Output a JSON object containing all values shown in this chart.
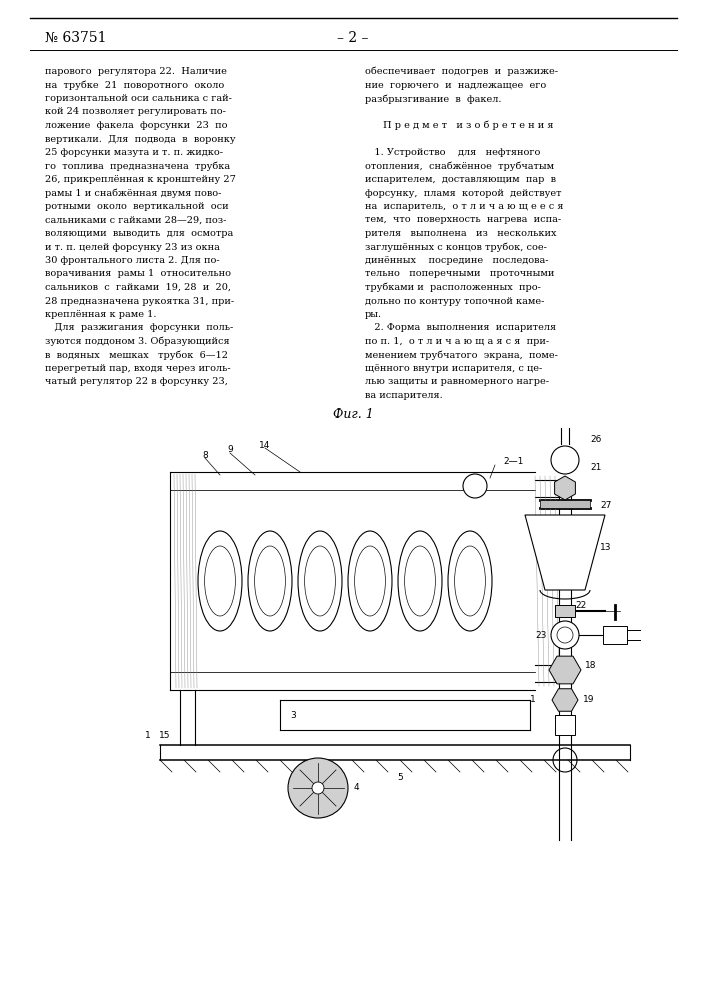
{
  "page_number": "№ 63751",
  "page_dash": "– 2 –",
  "background_color": "#ffffff",
  "text_color": "#000000",
  "figsize": [
    7.07,
    10.0
  ],
  "dpi": 100,
  "left_col_lines": [
    "парового  регулятора 22.  Наличие",
    "на  трубке  21  поворотного  около",
    "горизонтальной оси сальника с гай-",
    "кой 24 позволяет регулировать по-",
    "ложение  факела  форсунки  23  по",
    "вертикали.  Для  подвода  в  воронку",
    "25 форсунки мазута и т. п. жидко-",
    "го  топлива  предназначена  трубка",
    "26, прикреплённая к кронштейну 27",
    "рамы 1 и снабжённая двумя пово-",
    "ротными  около  вертикальной  оси",
    "сальниками с гайками 28—29, поз-",
    "воляющими  выводить  для  осмотра",
    "и т. п. целей форсунку 23 из окна",
    "30 фронтального листа 2. Для по-",
    "ворачивания  рамы 1  относительно",
    "сальников  с  гайками  19, 28  и  20,",
    "28 предназначена рукоятка 31, при-",
    "креплённая к раме 1.",
    "   Для  разжигания  форсунки  поль-",
    "зуются поддоном 3. Образующийся",
    "в  водяных   мешках   трубок  6—12",
    "перегретый пар, входя через иголь-",
    "чатый регулятор 22 в форсунку 23,"
  ],
  "right_col_lines": [
    "обеспечивает  подогрев  и  разжиже-",
    "ние  горючего  и  надлежащее  его",
    "разбрызгивание  в  факел.",
    "",
    "П р е д м е т   и з о б р е т е н и я",
    "",
    "   1. Устройство    для   нефтяного",
    "отопления,  снабжённое  трубчатым",
    "испарителем,  доставляющим  пар  в",
    "форсунку,  пламя  которой  действует",
    "на  испаритель,  о т л и ч а ю щ е е с я",
    "тем,  что  поверхность  нагрева  испа-",
    "рителя   выполнена   из   нескольких",
    "заглушённых с концов трубок, сое-",
    "динённых    посредине   последова-",
    "тельно   поперечными   проточными",
    "трубками и  расположенных  про-",
    "дольно по контуру топочной каме-",
    "ры.",
    "   2. Форма  выполнения  испарителя",
    "по п. 1,  о т л и ч а ю щ а я с я  при-",
    "менением трубчатого  экрана,  поме-",
    "щённого внутри испарителя, с це-",
    "лью защиты и равномерного нагре-",
    "ва испарителя."
  ],
  "fig_label": "Фиг. 1"
}
